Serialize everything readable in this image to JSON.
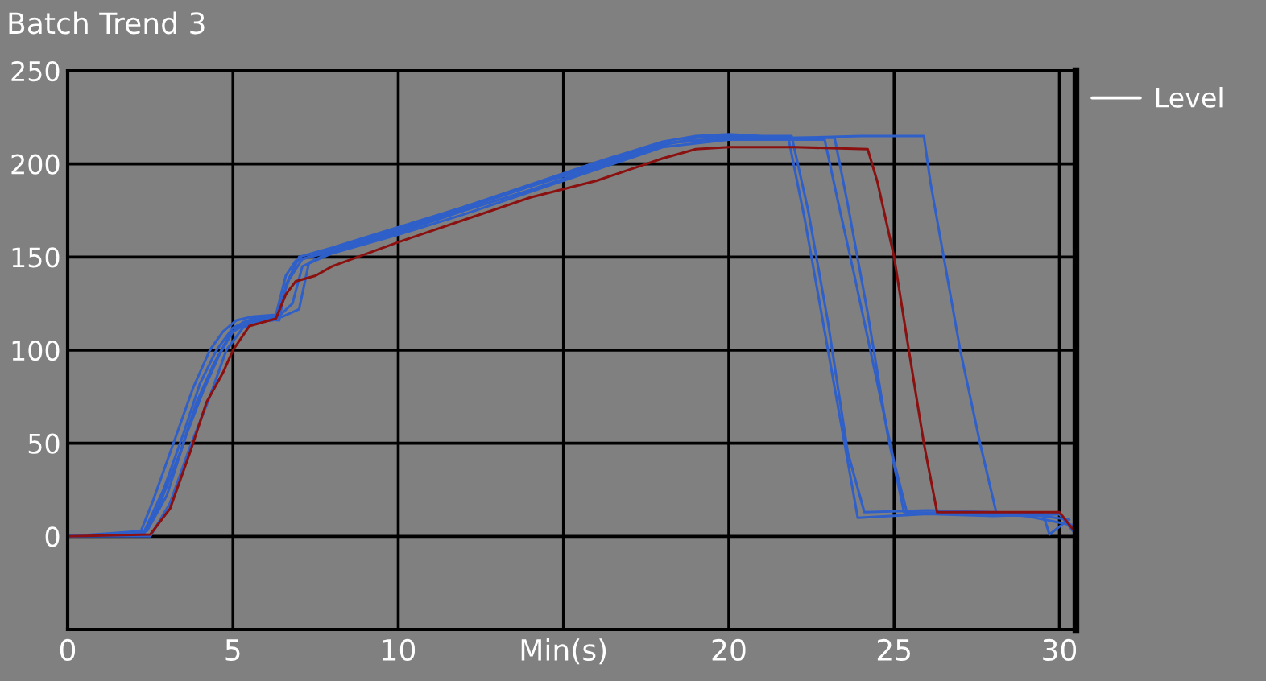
{
  "chart_data": {
    "type": "line",
    "title": "Batch Trend 3",
    "legend_title": "Level",
    "xlim": [
      0,
      30.5
    ],
    "ylim": [
      -50,
      250
    ],
    "xticks": [
      0,
      5,
      10,
      {
        "value": 15,
        "label": "Min(s)"
      },
      20,
      25,
      30
    ],
    "yticks": [
      0,
      50,
      100,
      150,
      200,
      250
    ],
    "grid": true,
    "series": [
      {
        "color": "#2f5fc8",
        "x": [
          0,
          2.2,
          2.6,
          3.2,
          3.8,
          4.3,
          4.7,
          5.1,
          5.6,
          6.3,
          6.6,
          6.9,
          8,
          10,
          12,
          14,
          16,
          18,
          19,
          20,
          21,
          21.8,
          22.3,
          22.9,
          23.6,
          23.9,
          26,
          28,
          30,
          30.4
        ],
        "values": [
          0,
          2,
          20,
          50,
          80,
          100,
          110,
          116,
          118,
          119,
          140,
          148,
          153,
          163,
          175,
          186,
          198,
          210,
          214,
          215,
          214,
          214,
          170,
          110,
          40,
          10,
          12,
          11,
          12,
          3
        ]
      },
      {
        "color": "#2f5fc8",
        "x": [
          0,
          2.3,
          2.8,
          3.4,
          3.9,
          4.4,
          4.9,
          5.3,
          5.9,
          6.4,
          6.6,
          7,
          8,
          10,
          12,
          14,
          16,
          18,
          19,
          20,
          21,
          21.9,
          22.4,
          23,
          23.6,
          24.1,
          26,
          28,
          29.5,
          29.7,
          30.2
        ],
        "values": [
          0,
          1,
          18,
          45,
          72,
          92,
          108,
          115,
          117,
          116,
          135,
          150,
          155,
          166,
          177,
          189,
          201,
          212,
          215,
          216,
          215,
          215,
          175,
          115,
          45,
          13,
          14,
          13,
          12,
          1,
          8
        ]
      },
      {
        "color": "#2f5fc8",
        "x": [
          0,
          2.4,
          3,
          3.6,
          4.1,
          4.6,
          5,
          5.5,
          6.2,
          6.5,
          6.8,
          7.1,
          8,
          10,
          12,
          14,
          16,
          18,
          20,
          21,
          22.9,
          23.3,
          23.8,
          24.4,
          25,
          25.4,
          27,
          29,
          30.3
        ],
        "values": [
          0,
          3,
          22,
          55,
          78,
          98,
          110,
          115,
          116,
          120,
          125,
          145,
          152,
          162,
          173,
          185,
          197,
          209,
          213,
          213,
          213,
          180,
          140,
          90,
          40,
          12,
          13,
          12,
          9
        ]
      },
      {
        "color": "#2f5fc8",
        "x": [
          0,
          2.5,
          3.1,
          3.7,
          4.3,
          4.8,
          5.3,
          6,
          6.5,
          7,
          7.3,
          8,
          10,
          12,
          14,
          16,
          18,
          20,
          22,
          24,
          25.9,
          26.1,
          26.5,
          27,
          27.6,
          28.1,
          29,
          30,
          30.4
        ],
        "values": [
          0,
          0,
          18,
          48,
          75,
          100,
          112,
          117,
          118,
          122,
          147,
          153,
          164,
          176,
          188,
          200,
          211,
          214,
          214,
          215,
          215,
          190,
          150,
          100,
          50,
          12,
          11,
          12,
          5
        ]
      },
      {
        "color": "#2f5fc8",
        "x": [
          0,
          2.3,
          2.9,
          3.5,
          4,
          4.5,
          5,
          5.6,
          6.3,
          6.7,
          7.1,
          8,
          10,
          12,
          14,
          16,
          18,
          20,
          22,
          23.2,
          23.6,
          24.2,
          24.8,
          25.3,
          27,
          29,
          30.4
        ],
        "values": [
          0,
          2,
          25,
          55,
          82,
          100,
          112,
          117,
          118,
          138,
          149,
          154,
          165,
          177,
          188,
          199,
          211,
          214,
          214,
          214,
          178,
          120,
          55,
          13,
          12,
          11,
          6
        ]
      },
      {
        "color": "#8b1010",
        "x": [
          0,
          2.5,
          3.1,
          3.7,
          4.2,
          4.7,
          5,
          5.5,
          6.3,
          6.6,
          6.9,
          7.5,
          8,
          10,
          12,
          14,
          16,
          17,
          18,
          19,
          20,
          22,
          24.2,
          24.5,
          25,
          25.4,
          25.9,
          26.3,
          28,
          30,
          30.4
        ],
        "values": [
          0,
          1,
          15,
          45,
          72,
          88,
          100,
          113,
          117,
          130,
          137,
          140,
          145,
          158,
          170,
          182,
          191,
          197,
          203,
          208,
          209,
          209,
          208,
          190,
          150,
          105,
          50,
          13,
          13,
          13,
          4
        ]
      }
    ]
  }
}
